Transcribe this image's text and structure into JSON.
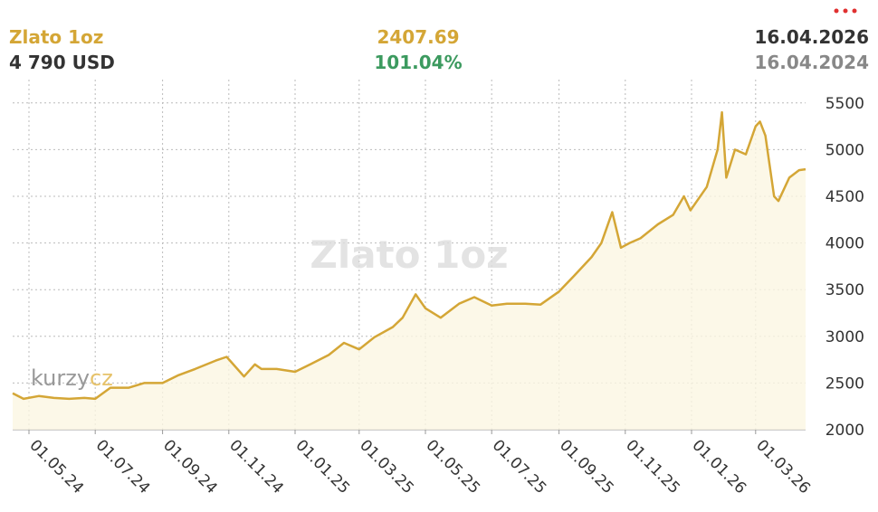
{
  "header": {
    "title": "Zlato 1oz",
    "price": "4 790 USD",
    "change_abs": "2407.69",
    "change_pct": "101.04%",
    "date_to": "16.04.2026",
    "date_from": "16.04.2024"
  },
  "logo": [
    "kurzy",
    "cz"
  ],
  "chart_data": {
    "type": "line",
    "title": "Zlato 1oz",
    "x": [
      "2024-04-16",
      "2024-04-26",
      "2024-05-10",
      "2024-05-24",
      "2024-06-07",
      "2024-06-21",
      "2024-07-01",
      "2024-07-15",
      "2024-08-01",
      "2024-08-15",
      "2024-09-01",
      "2024-09-15",
      "2024-10-01",
      "2024-10-20",
      "2024-10-30",
      "2024-11-15",
      "2024-11-25",
      "2024-12-01",
      "2024-12-15",
      "2025-01-01",
      "2025-01-15",
      "2025-02-01",
      "2025-02-15",
      "2025-03-01",
      "2025-03-15",
      "2025-04-01",
      "2025-04-10",
      "2025-04-22",
      "2025-05-01",
      "2025-05-15",
      "2025-06-01",
      "2025-06-15",
      "2025-07-01",
      "2025-07-15",
      "2025-08-01",
      "2025-08-15",
      "2025-09-01",
      "2025-09-15",
      "2025-10-01",
      "2025-10-10",
      "2025-10-20",
      "2025-10-28",
      "2025-11-05",
      "2025-11-15",
      "2025-12-01",
      "2025-12-15",
      "2025-12-25",
      "2025-12-31",
      "2026-01-15",
      "2026-01-25",
      "2026-01-29",
      "2026-02-02",
      "2026-02-10",
      "2026-02-20",
      "2026-03-01",
      "2026-03-05",
      "2026-03-10",
      "2026-03-18",
      "2026-03-22",
      "2026-04-01",
      "2026-04-10",
      "2026-04-16"
    ],
    "series": [
      {
        "name": "Zlato 1oz",
        "color": "#d4a636",
        "values": [
          2390,
          2330,
          2360,
          2340,
          2330,
          2340,
          2330,
          2450,
          2450,
          2500,
          2500,
          2580,
          2650,
          2740,
          2780,
          2570,
          2700,
          2650,
          2650,
          2620,
          2700,
          2800,
          2930,
          2860,
          2990,
          3100,
          3200,
          3450,
          3300,
          3200,
          3350,
          3420,
          3330,
          3350,
          3350,
          3340,
          3480,
          3650,
          3850,
          4000,
          4330,
          3950,
          4000,
          4050,
          4200,
          4300,
          4500,
          4350,
          4600,
          5000,
          5400,
          4700,
          5000,
          4950,
          5250,
          5300,
          5150,
          4500,
          4450,
          4700,
          4780,
          4790
        ]
      }
    ],
    "xlim": [
      "2024-04-16",
      "2026-04-16"
    ],
    "xticks": [
      {
        "value": "2024-05-01",
        "label": "01.05.24"
      },
      {
        "value": "2024-07-01",
        "label": "01.07.24"
      },
      {
        "value": "2024-09-01",
        "label": "01.09.24"
      },
      {
        "value": "2024-11-01",
        "label": "01.11.24"
      },
      {
        "value": "2025-01-01",
        "label": "01.01.25"
      },
      {
        "value": "2025-03-01",
        "label": "01.03.25"
      },
      {
        "value": "2025-05-01",
        "label": "01.05.25"
      },
      {
        "value": "2025-07-01",
        "label": "01.07.25"
      },
      {
        "value": "2025-09-01",
        "label": "01.09.25"
      },
      {
        "value": "2025-11-01",
        "label": "01.11.25"
      },
      {
        "value": "2026-01-01",
        "label": "01.01.26"
      },
      {
        "value": "2026-03-01",
        "label": "01.03.26"
      }
    ],
    "ylim": [
      2000,
      5750
    ],
    "yticks": [
      2000,
      2500,
      3000,
      3500,
      4000,
      4500,
      5000,
      5500
    ],
    "grid": true
  }
}
